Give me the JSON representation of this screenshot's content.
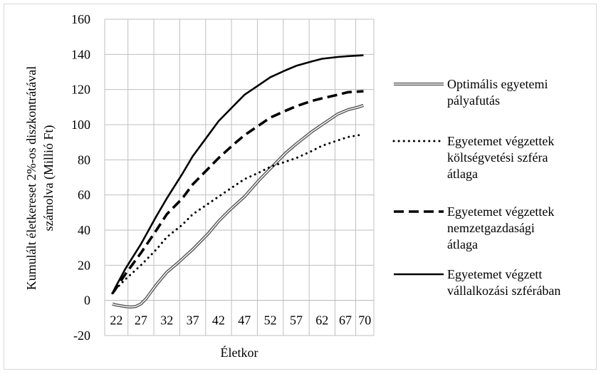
{
  "chart_data": {
    "type": "line",
    "xlabel": "Életkor",
    "ylabel_lines": [
      "Kumulált életkereset 2%-os diszkontrátával",
      "számolva (Millió Ft)"
    ],
    "ylim": [
      -20,
      160
    ],
    "yticks": [
      -20,
      0,
      20,
      40,
      60,
      80,
      100,
      120,
      140,
      160
    ],
    "categories": [
      22,
      27,
      32,
      37,
      42,
      47,
      52,
      57,
      62,
      67,
      70
    ],
    "x_range": [
      20,
      72
    ],
    "grid": "vertical lines between categories, horizontal lines at y ticks",
    "legend_position": "right",
    "series": [
      {
        "name_lines": [
          "Optimális egyetemi",
          "pályafutás"
        ],
        "style": "double",
        "x": [
          21.5,
          22,
          23,
          24,
          25,
          26,
          27,
          28,
          29,
          30,
          32,
          34,
          37,
          40,
          42,
          44,
          47,
          50,
          52,
          55,
          57,
          60,
          62,
          65,
          67,
          69,
          70
        ],
        "y": [
          -2,
          -2.5,
          -3,
          -3.5,
          -3.8,
          -3.5,
          -2,
          1,
          5,
          9,
          16,
          21,
          29,
          38,
          45,
          51,
          59,
          69,
          75,
          84,
          89,
          96,
          100,
          106,
          108.5,
          110,
          111
        ]
      },
      {
        "name_lines": [
          "Egyetemet végzettek",
          "költségvetési szféra",
          "átlaga"
        ],
        "style": "dotted",
        "x": [
          21.5,
          22,
          24,
          27,
          30,
          32,
          35,
          37,
          40,
          42,
          45,
          47,
          50,
          52,
          55,
          57,
          60,
          62,
          65,
          67,
          70
        ],
        "y": [
          4,
          6,
          12,
          20,
          29,
          36,
          43,
          49,
          55,
          59,
          65,
          69,
          73,
          76,
          79,
          81,
          85,
          88,
          91,
          93,
          94.5
        ]
      },
      {
        "name_lines": [
          "Egyetemet végzettek",
          "nemzetgazdasági",
          "átlaga"
        ],
        "style": "dashed",
        "x": [
          21.5,
          22,
          24,
          27,
          30,
          32,
          35,
          37,
          40,
          42,
          45,
          47,
          50,
          52,
          55,
          57,
          60,
          62,
          65,
          67,
          70
        ],
        "y": [
          4,
          6,
          15,
          27,
          40,
          49,
          58,
          66,
          75,
          81,
          89,
          94,
          100,
          104,
          108,
          110.5,
          113.5,
          115,
          117,
          118.5,
          119
        ]
      },
      {
        "name_lines": [
          "Egyetemet végzett",
          "vállalkozási szférában"
        ],
        "style": "solid",
        "x": [
          21.5,
          22,
          24,
          27,
          30,
          32,
          35,
          37,
          40,
          42,
          45,
          47,
          50,
          52,
          55,
          57,
          60,
          62,
          65,
          67,
          70
        ],
        "y": [
          4,
          7,
          18,
          32,
          48,
          58,
          72,
          82,
          94,
          102,
          111,
          117,
          123,
          127,
          131,
          133.5,
          136,
          137.5,
          138.5,
          139,
          139.5
        ]
      }
    ]
  }
}
